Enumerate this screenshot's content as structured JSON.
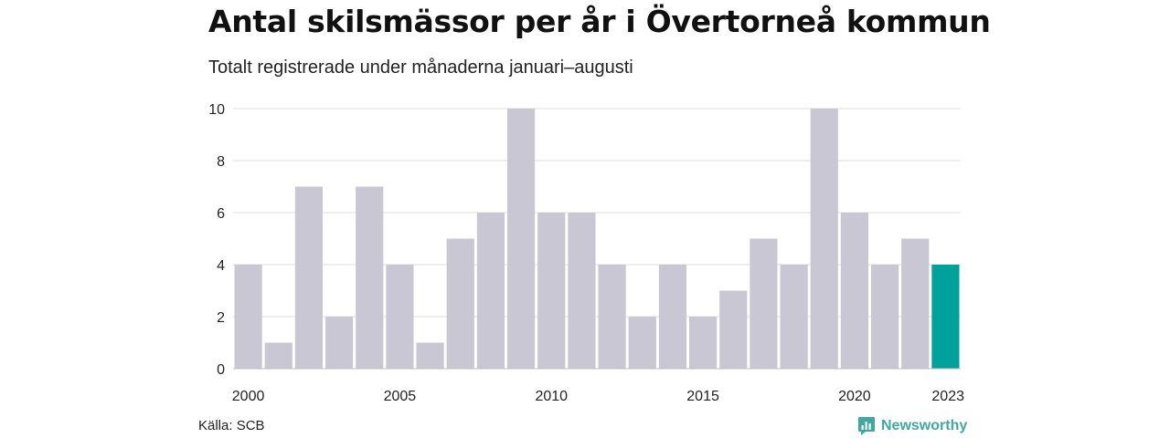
{
  "title": "Antal skilsmässor per år i Övertorneå kommun",
  "subtitle": "Totalt registrerade under månaderna januari–augusti",
  "source": "Källa: SCB",
  "brand": "Newsworthy",
  "colors": {
    "bar": "#c8c7d3",
    "highlight": "#00a19a",
    "grid": "#dcdcdc",
    "brand": "#3fa9a0"
  },
  "icons": {
    "brand": "newsworthy-logo-icon"
  },
  "chart_data": {
    "type": "bar",
    "categories": [
      "2000",
      "2001",
      "2002",
      "2003",
      "2004",
      "2005",
      "2006",
      "2007",
      "2008",
      "2009",
      "2010",
      "2011",
      "2012",
      "2013",
      "2014",
      "2015",
      "2016",
      "2017",
      "2018",
      "2019",
      "2020",
      "2021",
      "2022",
      "2023"
    ],
    "values": [
      4,
      1,
      7,
      2,
      7,
      4,
      1,
      5,
      6,
      10,
      6,
      6,
      4,
      2,
      4,
      2,
      3,
      5,
      4,
      10,
      6,
      4,
      5,
      4
    ],
    "highlight": "2023",
    "x_tick_labels": [
      "2000",
      "2005",
      "2010",
      "2015",
      "2020",
      "2023"
    ],
    "y_ticks": [
      0,
      2,
      4,
      6,
      8,
      10
    ],
    "ylim": [
      0,
      10
    ],
    "grid": true,
    "xlabel": "",
    "ylabel": ""
  }
}
